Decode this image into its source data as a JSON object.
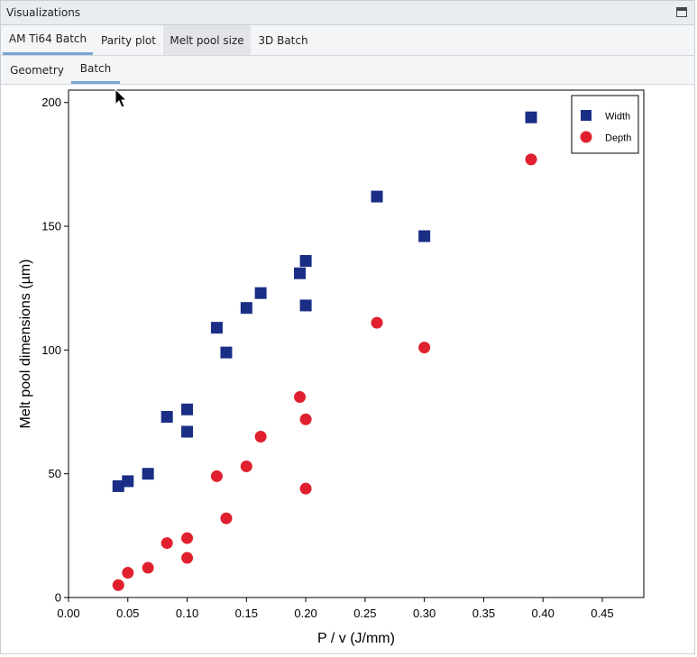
{
  "window": {
    "title": "Visualizations"
  },
  "tabs_primary": [
    {
      "label": "AM Ti64 Batch",
      "active": true
    },
    {
      "label": "Parity plot",
      "active": false
    },
    {
      "label": "Melt pool size",
      "active": false
    },
    {
      "label": "3D Batch",
      "active": false
    }
  ],
  "tabs_secondary": [
    {
      "label": "Geometry",
      "active": false
    },
    {
      "label": "Batch",
      "active": true
    }
  ],
  "icons": {
    "maximize": "maximize-icon",
    "cursor": "mouse-pointer-icon"
  },
  "colors": {
    "width_series": "#1a2e86",
    "depth_series": "#e0202e",
    "tab_accent": "#7aa4d6"
  },
  "chart_data": {
    "type": "scatter",
    "xlabel": "P / v (J/mm)",
    "ylabel": "Melt pool dimensions (µm)",
    "xlim": [
      0,
      0.485
    ],
    "ylim": [
      0,
      205
    ],
    "xticks": [
      0.0,
      0.05,
      0.1,
      0.15,
      0.2,
      0.25,
      0.3,
      0.35,
      0.4,
      0.45
    ],
    "xtick_labels": [
      "0.00",
      "0.05",
      "0.10",
      "0.15",
      "0.20",
      "0.25",
      "0.30",
      "0.35",
      "0.40",
      "0.45"
    ],
    "yticks": [
      0,
      50,
      100,
      150,
      200
    ],
    "ytick_labels": [
      "0",
      "50",
      "100",
      "150",
      "200"
    ],
    "grid": false,
    "legend": "top-right",
    "series": [
      {
        "name": "Width",
        "marker": "square",
        "x": [
          0.042,
          0.05,
          0.067,
          0.083,
          0.1,
          0.1,
          0.125,
          0.133,
          0.15,
          0.162,
          0.195,
          0.2,
          0.2,
          0.26,
          0.3,
          0.39
        ],
        "y": [
          45,
          47,
          50,
          73,
          76,
          67,
          109,
          99,
          117,
          123,
          131,
          136,
          118,
          162,
          146,
          194
        ]
      },
      {
        "name": "Depth",
        "marker": "circle",
        "x": [
          0.042,
          0.05,
          0.067,
          0.083,
          0.1,
          0.1,
          0.125,
          0.133,
          0.15,
          0.162,
          0.195,
          0.2,
          0.2,
          0.26,
          0.3,
          0.39
        ],
        "y": [
          5,
          10,
          12,
          22,
          24,
          16,
          49,
          32,
          53,
          65,
          81,
          72,
          44,
          111,
          101,
          177
        ]
      }
    ]
  }
}
